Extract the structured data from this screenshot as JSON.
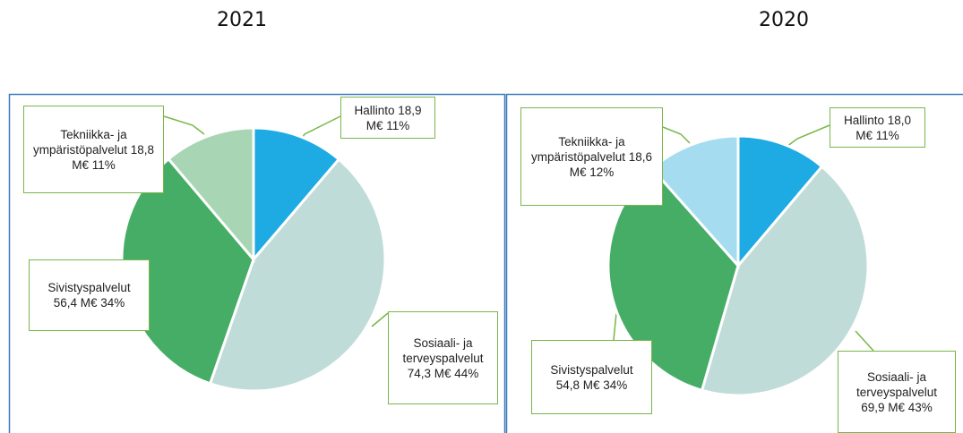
{
  "chart_data": [
    {
      "type": "pie",
      "title": "2021",
      "categories": [
        "Hallinto",
        "Sosiaali- ja terveyspalvelut",
        "Sivistyspalvelut",
        "Tekniikka- ja ympäristöpalvelut"
      ],
      "values": [
        18.9,
        74.3,
        56.4,
        18.8
      ],
      "value_labels": [
        "18,9 M€",
        "74,3 M€",
        "56,4 M€",
        "18,8 M€"
      ],
      "percents": [
        11,
        44,
        34,
        11
      ],
      "percent_labels": [
        "11%",
        "44%",
        "34%",
        "11%"
      ],
      "colors": [
        "#1eaae2",
        "#c0dcd9",
        "#46ad66",
        "#a8d5b3"
      ]
    },
    {
      "type": "pie",
      "title": "2020",
      "categories": [
        "Hallinto",
        "Sosiaali- ja terveyspalvelut",
        "Sivistyspalvelut",
        "Tekniikka- ja ympäristöpalvelut"
      ],
      "values": [
        18.0,
        69.9,
        54.8,
        18.6
      ],
      "value_labels": [
        "18,0 M€",
        "69,9 M€",
        "54,8 M€",
        "18,6 M€"
      ],
      "percents": [
        11,
        43,
        34,
        12
      ],
      "percent_labels": [
        "11%",
        "43%",
        "34%",
        "12%"
      ],
      "colors": [
        "#1eaae2",
        "#c0dcd9",
        "#46ad66",
        "#a5dcf0"
      ]
    }
  ]
}
